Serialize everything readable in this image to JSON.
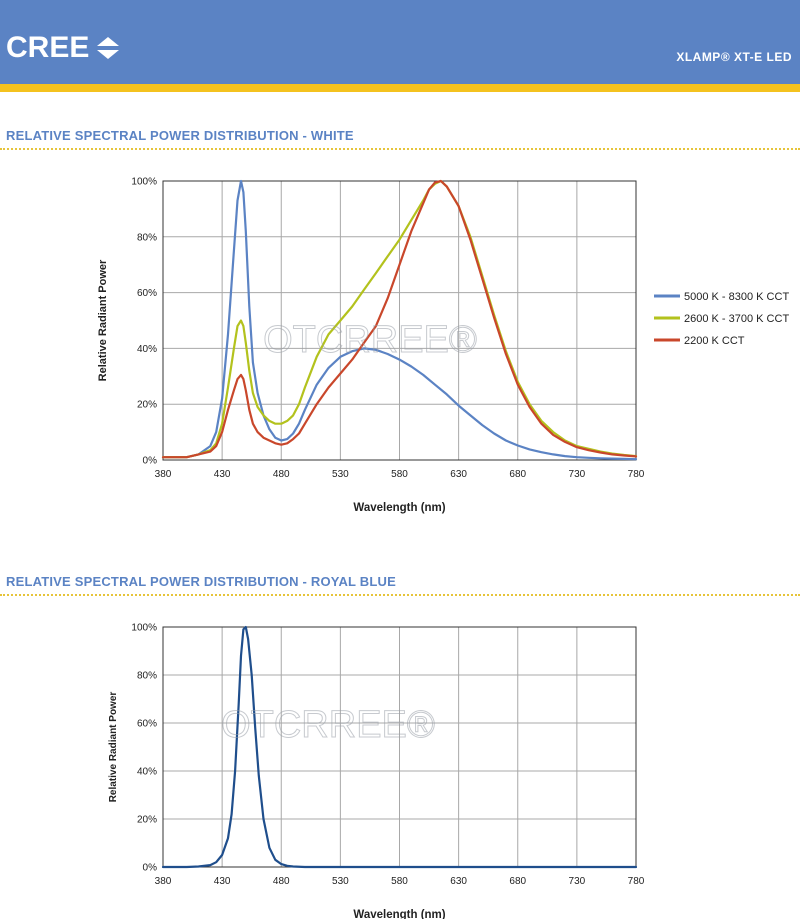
{
  "header": {
    "brand": "CREE",
    "product": "XLAMP® XT-E LED"
  },
  "colors": {
    "header_bg": "#5b83c4",
    "stripe": "#f4c21f",
    "section_title": "#5b83c4"
  },
  "icons": {
    "logo": "cree-diamond-arrows-icon"
  },
  "sections": [
    {
      "title": "RELATIVE SPECTRAL POWER DISTRIBUTION - WHITE"
    },
    {
      "title": "RELATIVE SPECTRAL POWER DISTRIBUTION - ROYAL BLUE"
    }
  ],
  "watermark": "OTCRREE®",
  "chart_data": [
    {
      "type": "line",
      "xlabel": "Wavelength (nm)",
      "ylabel": "Relative Radiant Power",
      "xlim": [
        380,
        780
      ],
      "ylim": [
        0,
        100
      ],
      "x_ticks": [
        380,
        430,
        480,
        530,
        580,
        630,
        680,
        730,
        780
      ],
      "y_ticks": [
        "0%",
        "20%",
        "40%",
        "60%",
        "80%",
        "100%"
      ],
      "grid": true,
      "legend": "right",
      "series": [
        {
          "name": "5000 K - 8300 K CCT",
          "color": "#5b83c4",
          "x": [
            380,
            390,
            400,
            410,
            420,
            425,
            430,
            435,
            440,
            443,
            446,
            448,
            450,
            453,
            456,
            460,
            465,
            470,
            475,
            480,
            485,
            490,
            495,
            500,
            510,
            520,
            530,
            540,
            550,
            560,
            570,
            580,
            590,
            600,
            610,
            620,
            630,
            640,
            650,
            660,
            670,
            680,
            690,
            700,
            710,
            720,
            730,
            740,
            750,
            760,
            770,
            780
          ],
          "y": [
            1,
            1,
            1,
            2,
            5,
            10,
            22,
            45,
            75,
            93,
            100,
            96,
            82,
            55,
            35,
            24,
            16,
            11,
            8,
            7,
            7.5,
            9.5,
            13,
            18,
            27,
            33,
            37,
            39,
            40,
            39.5,
            38,
            36,
            33.5,
            30.5,
            27,
            23.5,
            19.5,
            16,
            12.5,
            9.5,
            7,
            5.2,
            3.8,
            2.8,
            2,
            1.4,
            1,
            0.8,
            0.6,
            0.5,
            0.4,
            0.3
          ]
        },
        {
          "name": "2600 K - 3700 K CCT",
          "color": "#b3c21d",
          "x": [
            380,
            390,
            400,
            410,
            420,
            425,
            430,
            435,
            440,
            443,
            446,
            448,
            450,
            453,
            456,
            460,
            465,
            470,
            475,
            480,
            485,
            490,
            495,
            500,
            510,
            520,
            530,
            540,
            550,
            560,
            570,
            580,
            590,
            600,
            605,
            610,
            615,
            620,
            630,
            640,
            650,
            660,
            670,
            680,
            690,
            700,
            710,
            720,
            730,
            740,
            750,
            760,
            770,
            780
          ],
          "y": [
            1,
            1,
            1,
            2,
            3.5,
            6,
            13,
            26,
            40,
            48,
            50,
            48,
            42,
            32,
            24,
            19,
            16,
            14,
            13,
            13,
            14,
            16,
            20,
            26,
            37,
            45,
            50,
            55,
            61,
            67,
            73,
            79,
            86,
            93,
            97,
            99,
            100,
            98,
            91,
            80,
            66,
            52,
            39,
            28,
            20,
            14,
            10,
            7,
            5,
            4,
            3,
            2.3,
            1.8,
            1.4
          ]
        },
        {
          "name": "2200 K CCT",
          "color": "#c9472b",
          "x": [
            380,
            390,
            400,
            410,
            420,
            425,
            430,
            435,
            440,
            443,
            446,
            448,
            450,
            453,
            456,
            460,
            465,
            470,
            475,
            480,
            485,
            490,
            495,
            500,
            510,
            520,
            530,
            540,
            550,
            560,
            570,
            580,
            590,
            600,
            605,
            610,
            615,
            620,
            630,
            640,
            650,
            660,
            670,
            680,
            690,
            700,
            710,
            720,
            730,
            740,
            750,
            760,
            770,
            780
          ],
          "y": [
            1,
            1,
            1,
            2,
            3,
            5,
            10,
            18,
            25,
            29,
            30.5,
            29,
            25,
            18,
            13,
            10,
            8,
            7,
            6,
            5.5,
            6,
            7.5,
            9.5,
            13,
            20,
            26,
            31,
            36,
            42,
            48,
            58,
            70,
            82,
            92,
            97,
            99.5,
            100,
            98,
            91,
            79,
            65,
            51,
            38,
            27,
            19,
            13,
            9,
            6.5,
            4.6,
            3.5,
            2.7,
            2,
            1.6,
            1.3
          ]
        }
      ]
    },
    {
      "type": "line",
      "xlabel": "Wavelength (nm)",
      "ylabel": "Relative Radiant Power",
      "xlim": [
        380,
        780
      ],
      "ylim": [
        0,
        100
      ],
      "x_ticks": [
        380,
        430,
        480,
        530,
        580,
        630,
        680,
        730,
        780
      ],
      "y_ticks": [
        "0%",
        "20%",
        "40%",
        "60%",
        "80%",
        "100%"
      ],
      "grid": true,
      "series": [
        {
          "color": "#1f4e8c",
          "x": [
            380,
            400,
            410,
            420,
            425,
            430,
            435,
            438,
            441,
            444,
            446,
            448,
            450,
            452,
            455,
            458,
            461,
            465,
            470,
            475,
            480,
            485,
            490,
            500,
            520,
            560,
            600,
            650,
            700,
            780
          ],
          "y": [
            0,
            0,
            0.2,
            0.8,
            2,
            5,
            12,
            22,
            40,
            68,
            88,
            99,
            100,
            95,
            80,
            58,
            38,
            20,
            8,
            3,
            1.2,
            0.5,
            0.2,
            0,
            0,
            0,
            0,
            0,
            0,
            0
          ]
        }
      ]
    }
  ]
}
